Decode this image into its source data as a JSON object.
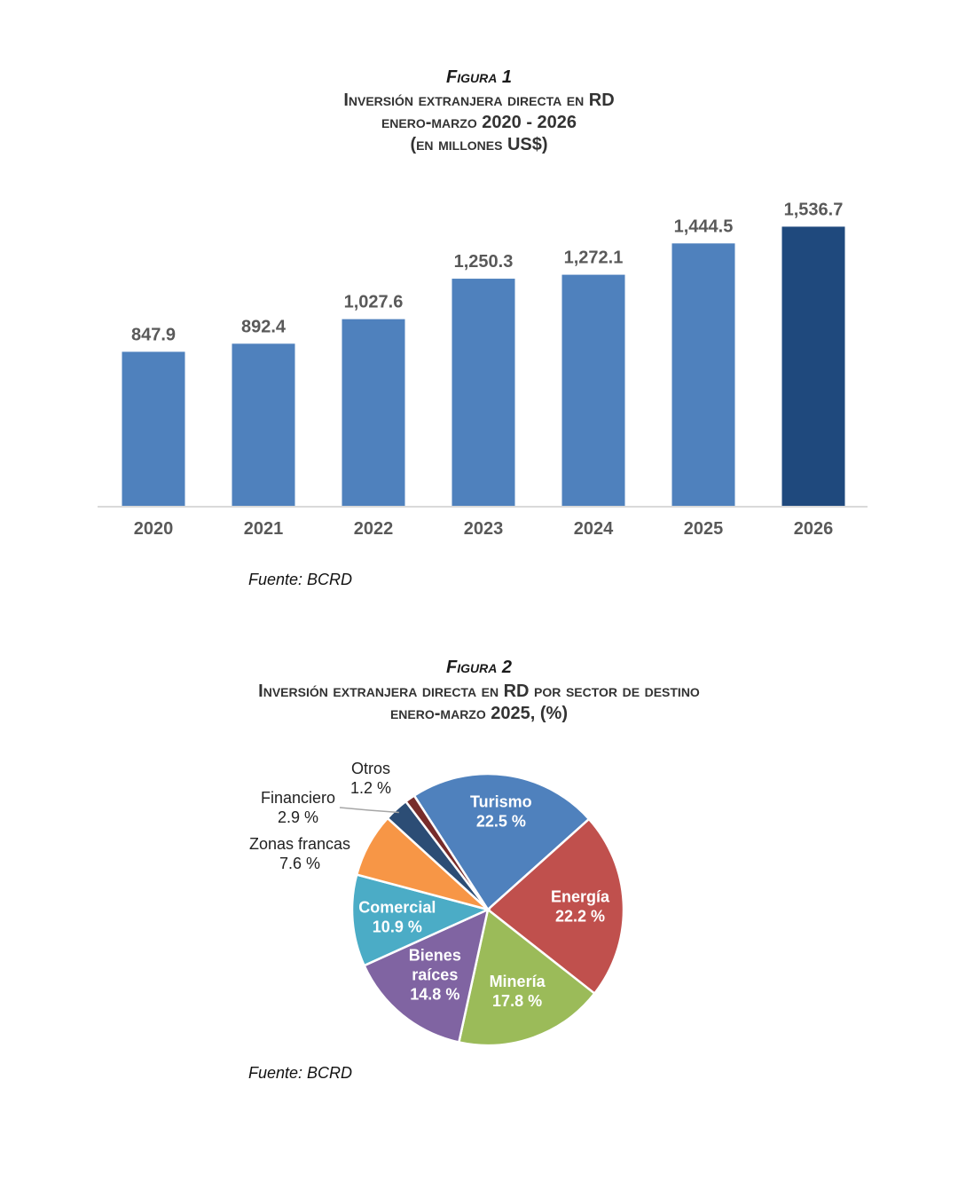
{
  "figure1": {
    "label": "Figura 1",
    "title_lines": [
      "Inversión extranjera directa en RD",
      "enero-marzo 2020 - 2026",
      "(en millones US$)"
    ],
    "source": "Fuente: BCRD",
    "colors": {
      "default": "#4f81bd",
      "highlight": "#1f497d",
      "axis": "#d9d9d9"
    }
  },
  "figure2": {
    "label": "Figura 2",
    "title_lines": [
      "Inversión extranjera directa en RD por sector de destino",
      "enero-marzo 2025, (%)"
    ],
    "source": "Fuente: BCRD"
  },
  "chart_data": [
    {
      "type": "bar",
      "categories": [
        "2020",
        "2021",
        "2022",
        "2023",
        "2024",
        "2025",
        "2026"
      ],
      "values": [
        847.9,
        892.4,
        1027.6,
        1250.3,
        1272.1,
        1444.5,
        1536.7
      ],
      "value_labels": [
        "847.9",
        "892.4",
        "1,027.6",
        "1,250.3",
        "1,272.1",
        "1,444.5",
        "1,536.7"
      ],
      "highlight": "2026",
      "ylim": [
        0,
        1700
      ],
      "grid": false
    },
    {
      "type": "pie",
      "slices": [
        {
          "name": "Turismo",
          "label_lines": [
            "Turismo",
            "22.5 %"
          ],
          "value": 22.5,
          "color": "#4f81bd",
          "label_inside": true
        },
        {
          "name": "Energía",
          "label_lines": [
            "Energía",
            "22.2 %"
          ],
          "value": 22.2,
          "color": "#c0504d",
          "label_inside": true
        },
        {
          "name": "Minería",
          "label_lines": [
            "Minería",
            "17.8 %"
          ],
          "value": 17.8,
          "color": "#9bbb59",
          "label_inside": true
        },
        {
          "name": "Bienes raíces",
          "label_lines": [
            "Bienes",
            "raíces",
            "14.8 %"
          ],
          "value": 14.8,
          "color": "#8064a2",
          "label_inside": true
        },
        {
          "name": "Comercial",
          "label_lines": [
            "Comercial",
            "10.9 %"
          ],
          "value": 10.9,
          "color": "#4bacc6",
          "label_inside": true
        },
        {
          "name": "Zonas francas",
          "label_lines": [
            "Zonas francas",
            "7.6 %"
          ],
          "value": 7.6,
          "color": "#f79646",
          "label_inside": false
        },
        {
          "name": "Financiero",
          "label_lines": [
            "Financiero",
            "2.9 %"
          ],
          "value": 2.9,
          "color": "#2c4d75",
          "label_inside": false
        },
        {
          "name": "Otros",
          "label_lines": [
            "Otros",
            "1.2 %"
          ],
          "value": 1.2,
          "color": "#772c2a",
          "label_inside": false
        }
      ]
    }
  ]
}
